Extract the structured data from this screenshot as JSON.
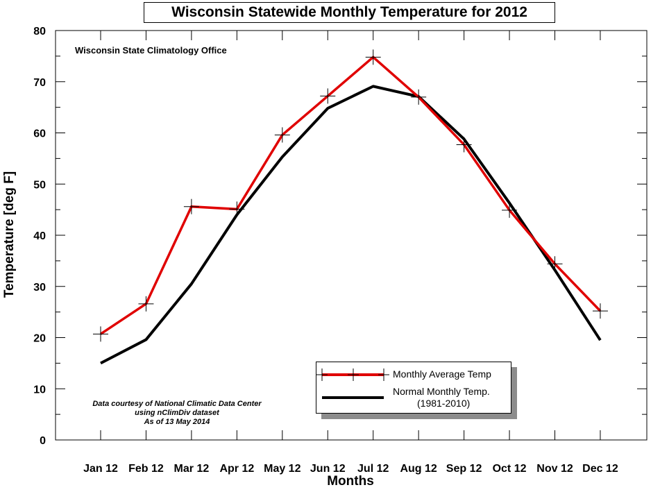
{
  "chart_data": {
    "type": "line",
    "title": "Wisconsin Statewide Monthly Temperature for 2012",
    "subtitle": "Wisconsin State Climatology Office",
    "xlabel": "Months",
    "ylabel": "Temperature [deg F]",
    "ylim": [
      0,
      80
    ],
    "yticks": [
      0,
      10,
      20,
      30,
      40,
      50,
      60,
      70,
      80
    ],
    "categories": [
      "Jan 12",
      "Feb 12",
      "Mar 12",
      "Apr 12",
      "May 12",
      "Jun 12",
      "Jul 12",
      "Aug 12",
      "Sep 12",
      "Oct 12",
      "Nov 12",
      "Dec 12"
    ],
    "series": [
      {
        "name": "Monthly Average Temp",
        "color": "#e00000",
        "marker": "plus",
        "values": [
          20.7,
          26.6,
          45.6,
          45.1,
          59.6,
          67.2,
          74.8,
          67.0,
          57.7,
          44.9,
          34.4,
          25.2
        ]
      },
      {
        "name": "Normal Monthly Temp.",
        "name_line2": "(1981-2010)",
        "color": "#000000",
        "marker": "none",
        "values": [
          15.0,
          19.6,
          30.5,
          44.0,
          55.3,
          64.8,
          69.1,
          67.1,
          58.8,
          46.3,
          33.2,
          19.5
        ]
      }
    ],
    "annotation": [
      "Data courtesy of National Climatic Data Center",
      "using nClimDiv dataset",
      "As of 13 May 2014"
    ],
    "grid": false,
    "legend_position": "bottom-right"
  }
}
